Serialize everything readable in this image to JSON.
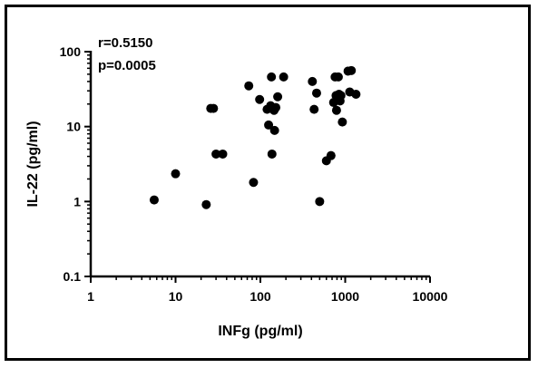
{
  "chart_data": {
    "type": "scatter",
    "title": "",
    "xlabel": "INFg (pg/ml)",
    "ylabel": "IL-22 (pg/ml)",
    "x_scale": "log",
    "y_scale": "log",
    "xlim": [
      1,
      10000
    ],
    "ylim": [
      0.1,
      100
    ],
    "x_ticks": [
      1,
      10,
      100,
      1000,
      10000
    ],
    "x_tick_labels": [
      "1",
      "10",
      "100",
      "1000",
      "10000"
    ],
    "y_ticks": [
      0.1,
      1,
      10,
      100
    ],
    "y_tick_labels": [
      "0.1",
      "1",
      "10",
      "100"
    ],
    "grid": false,
    "annotations": [
      "r=0.5150",
      "p=0.0005"
    ],
    "marker_color": "#000000",
    "points": [
      {
        "x": 5.6,
        "y": 1.05
      },
      {
        "x": 10,
        "y": 2.35
      },
      {
        "x": 23,
        "y": 0.91
      },
      {
        "x": 26,
        "y": 17.5
      },
      {
        "x": 28,
        "y": 17.5
      },
      {
        "x": 30,
        "y": 4.3
      },
      {
        "x": 36,
        "y": 4.3
      },
      {
        "x": 73,
        "y": 35
      },
      {
        "x": 83,
        "y": 1.8
      },
      {
        "x": 98,
        "y": 23
      },
      {
        "x": 120,
        "y": 17
      },
      {
        "x": 125,
        "y": 10.5
      },
      {
        "x": 132,
        "y": 19
      },
      {
        "x": 135,
        "y": 46
      },
      {
        "x": 137,
        "y": 4.3
      },
      {
        "x": 145,
        "y": 16.5
      },
      {
        "x": 147,
        "y": 8.9
      },
      {
        "x": 152,
        "y": 18
      },
      {
        "x": 160,
        "y": 25
      },
      {
        "x": 188,
        "y": 46
      },
      {
        "x": 410,
        "y": 40
      },
      {
        "x": 430,
        "y": 17
      },
      {
        "x": 460,
        "y": 28
      },
      {
        "x": 500,
        "y": 1.0
      },
      {
        "x": 600,
        "y": 3.5
      },
      {
        "x": 680,
        "y": 4.1
      },
      {
        "x": 730,
        "y": 21
      },
      {
        "x": 760,
        "y": 46
      },
      {
        "x": 780,
        "y": 26
      },
      {
        "x": 790,
        "y": 16.5
      },
      {
        "x": 830,
        "y": 46
      },
      {
        "x": 845,
        "y": 27
      },
      {
        "x": 870,
        "y": 22
      },
      {
        "x": 890,
        "y": 26
      },
      {
        "x": 925,
        "y": 11.5
      },
      {
        "x": 1080,
        "y": 55
      },
      {
        "x": 1130,
        "y": 29
      },
      {
        "x": 1180,
        "y": 56
      },
      {
        "x": 1340,
        "y": 27
      }
    ]
  }
}
